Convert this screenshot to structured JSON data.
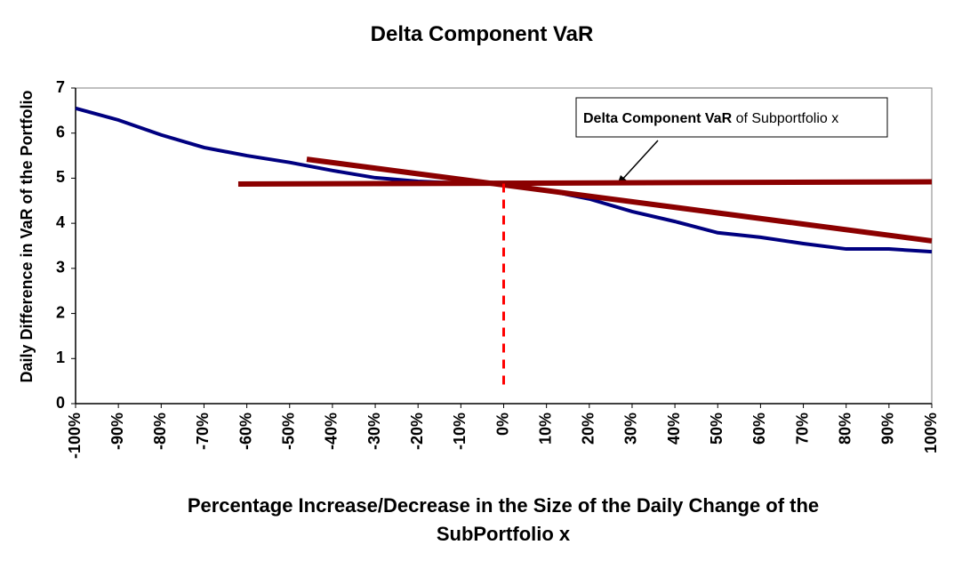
{
  "chart_data": {
    "type": "line",
    "title": "Delta Component VaR",
    "xlabel": [
      "Percentage Increase/Decrease in the Size of the Daily Change of the",
      "SubPortfolio x"
    ],
    "ylabel": "Daily Difference in VaR of the Portfolio",
    "annotation": [
      "Delta Component VaR",
      "of Subportfolio x"
    ],
    "xlim": [
      -100,
      100
    ],
    "ylim": [
      0,
      7
    ],
    "yticks": [
      0,
      1,
      2,
      3,
      4,
      5,
      6,
      7
    ],
    "xticks": [
      {
        "value": -100,
        "label": "-100%"
      },
      {
        "value": -90,
        "label": "-90%"
      },
      {
        "value": -80,
        "label": "-80%"
      },
      {
        "value": -70,
        "label": "-70%"
      },
      {
        "value": -60,
        "label": "-60%"
      },
      {
        "value": -50,
        "label": "-50%"
      },
      {
        "value": -40,
        "label": "-40%"
      },
      {
        "value": -30,
        "label": "-30%"
      },
      {
        "value": -20,
        "label": "-20%"
      },
      {
        "value": -10,
        "label": "-10%"
      },
      {
        "value": 0,
        "label": "0%"
      },
      {
        "value": 10,
        "label": "10%"
      },
      {
        "value": 20,
        "label": "20%"
      },
      {
        "value": 30,
        "label": "30%"
      },
      {
        "value": 40,
        "label": "40%"
      },
      {
        "value": 50,
        "label": "50%"
      },
      {
        "value": 60,
        "label": "60%"
      },
      {
        "value": 70,
        "label": "70%"
      },
      {
        "value": 80,
        "label": "80%"
      },
      {
        "value": 90,
        "label": "90%"
      },
      {
        "value": 100,
        "label": "100%"
      }
    ],
    "series": [
      {
        "color": "#000080",
        "x": [
          -100,
          -90,
          -80,
          -70,
          -60,
          -50,
          -40,
          -30,
          -20,
          -10,
          0,
          10,
          20,
          30,
          40,
          50,
          60,
          70,
          80,
          90,
          100
        ],
        "values": [
          6.55,
          6.29,
          5.96,
          5.68,
          5.5,
          5.35,
          5.17,
          5.01,
          4.93,
          4.89,
          4.88,
          4.73,
          4.54,
          4.26,
          4.04,
          3.79,
          3.69,
          3.55,
          3.43,
          3.43,
          3.37
        ]
      },
      {
        "color": "#8b0000",
        "x": [
          -62,
          100
        ],
        "values": [
          4.87,
          4.92
        ]
      },
      {
        "color": "#8b0000",
        "x": [
          -46,
          100
        ],
        "values": [
          5.42,
          3.61
        ]
      },
      {
        "color": "#ff0000",
        "dashed": true,
        "x": [
          0,
          0
        ],
        "values": [
          4.88,
          0.28
        ]
      }
    ]
  }
}
